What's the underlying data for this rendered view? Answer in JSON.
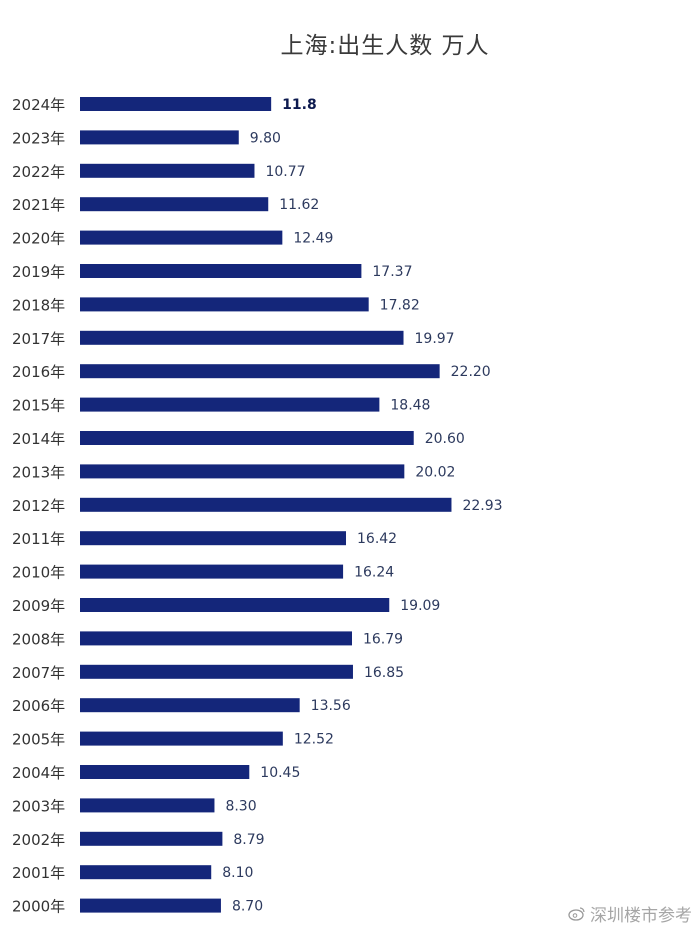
{
  "chart_data": {
    "type": "bar",
    "orientation": "horizontal",
    "title": "上海:出生人数 万人",
    "categories": [
      "2024年",
      "2023年",
      "2022年",
      "2021年",
      "2020年",
      "2019年",
      "2018年",
      "2017年",
      "2016年",
      "2015年",
      "2014年",
      "2013年",
      "2012年",
      "2011年",
      "2010年",
      "2009年",
      "2008年",
      "2007年",
      "2006年",
      "2005年",
      "2004年",
      "2003年",
      "2002年",
      "2001年",
      "2000年"
    ],
    "values": [
      11.8,
      9.8,
      10.77,
      11.62,
      12.49,
      17.37,
      17.82,
      19.97,
      22.2,
      18.48,
      20.6,
      20.02,
      22.93,
      16.42,
      16.24,
      19.09,
      16.79,
      16.85,
      13.56,
      12.52,
      10.45,
      8.3,
      8.79,
      8.1,
      8.7
    ],
    "value_labels": [
      "11.8",
      "9.80",
      "10.77",
      "11.62",
      "12.49",
      "17.37",
      "17.82",
      "19.97",
      "22.20",
      "18.48",
      "20.60",
      "20.02",
      "22.93",
      "16.42",
      "16.24",
      "19.09",
      "16.79",
      "16.85",
      "13.56",
      "12.52",
      "10.45",
      "8.30",
      "8.79",
      "8.10",
      "8.70"
    ],
    "highlight_index": 0,
    "xlim": [
      0,
      23
    ],
    "grid": false,
    "legend": "none",
    "colors": {
      "bar": "#14267a",
      "label": "#2d3a5e",
      "highlight_label": "#0d1a4f",
      "category": "#333333"
    }
  },
  "watermark": {
    "text": "深圳楼市参考",
    "icon": "weibo-icon"
  }
}
